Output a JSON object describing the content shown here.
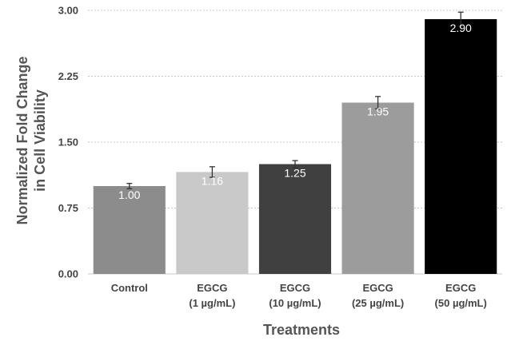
{
  "chart_data": {
    "type": "bar",
    "categories": [
      [
        "Control"
      ],
      [
        "EGCG",
        "(1 µg/mL)"
      ],
      [
        "EGCG",
        "(10 µg/mL)"
      ],
      [
        "EGCG",
        "(25 µg/mL)"
      ],
      [
        "EGCG",
        "(50 µg/mL)"
      ]
    ],
    "values": [
      1.0,
      1.16,
      1.25,
      1.95,
      2.9
    ],
    "value_labels": [
      "1.00",
      "1.16",
      "1.25",
      "1.95",
      "2.90"
    ],
    "errors": [
      0.03,
      0.06,
      0.04,
      0.07,
      0.08
    ],
    "colors": [
      "#8c8c8c",
      "#c9c9c9",
      "#404040",
      "#9c9c9c",
      "#000000"
    ],
    "yticks": [
      "0.00",
      "0.75",
      "1.50",
      "2.25",
      "3.00"
    ],
    "ylim": [
      0,
      3
    ],
    "xlabel": "Treatments",
    "ylabel": [
      "Normalized Fold Change",
      "in Cell Viability"
    ],
    "grid": true
  }
}
